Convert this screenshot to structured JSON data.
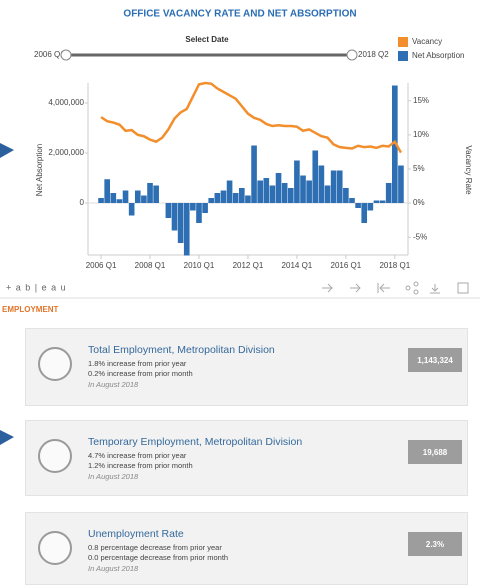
{
  "chart_data": {
    "type": "combo",
    "title": "OFFICE VACANCY RATE AND NET ABSORPTION",
    "filter_label": "Select Date",
    "range_start": "2006 Q1",
    "range_end": "2018 Q2",
    "ylabel": "Net Absorption",
    "y2label": "Vacancy Rate",
    "categories": [
      "2006 Q1",
      null,
      null,
      null,
      null,
      null,
      null,
      null,
      "2008 Q1",
      null,
      null,
      null,
      null,
      null,
      null,
      null,
      "2010 Q1",
      null,
      null,
      null,
      null,
      null,
      null,
      null,
      "2012 Q1",
      null,
      null,
      null,
      null,
      null,
      null,
      null,
      "2014 Q1",
      null,
      null,
      null,
      null,
      null,
      null,
      null,
      "2016 Q1",
      null,
      null,
      null,
      null,
      null,
      null,
      null,
      "2018 Q1",
      null
    ],
    "series": [
      {
        "name": "Vacancy",
        "type": "line",
        "axis": "y2",
        "color": "#f28e2b",
        "values": [
          12.6,
          12.0,
          11.8,
          11.5,
          10.6,
          10.7,
          10.0,
          9.8,
          9.3,
          9.0,
          9.6,
          10.8,
          12.4,
          13.3,
          13.8,
          15.6,
          17.4,
          17.6,
          17.5,
          16.8,
          16.3,
          15.8,
          15.3,
          14.2,
          13.1,
          12.5,
          12.2,
          11.6,
          11.3,
          11.4,
          11.3,
          11.3,
          11.2,
          10.6,
          10.8,
          10.3,
          9.8,
          9.6,
          8.6,
          8.2,
          8.1,
          8.0,
          8.4,
          8.2,
          8.3,
          8.1,
          8.4,
          8.3,
          9.0,
          7.4
        ]
      },
      {
        "name": "Net Absorption",
        "type": "bar",
        "color": "#2e6fb3",
        "values": [
          200000,
          950000,
          400000,
          150000,
          500000,
          -500000,
          500000,
          300000,
          800000,
          700000,
          0,
          -600000,
          -1100000,
          -1600000,
          -2100000,
          -300000,
          -800000,
          -400000,
          200000,
          400000,
          500000,
          900000,
          400000,
          600000,
          300000,
          2300000,
          900000,
          1000000,
          700000,
          1200000,
          800000,
          600000,
          1700000,
          1100000,
          900000,
          2100000,
          1500000,
          700000,
          1300000,
          1300000,
          600000,
          200000,
          -200000,
          -800000,
          -300000,
          100000,
          100000,
          800000,
          4700000,
          1500000
        ]
      }
    ],
    "ylim": [
      -2080000,
      4800000
    ],
    "yticks": [
      {
        "value": 4000000,
        "label": "4,000,000"
      },
      {
        "value": 2000000,
        "label": "2,000,000"
      },
      0
    ],
    "y2lim": [
      -7.6,
      17.6
    ],
    "y2ticks": [
      {
        "value": 15,
        "label": "15%"
      },
      {
        "value": 10,
        "label": "10%"
      },
      {
        "value": 5,
        "label": "5%"
      },
      {
        "value": 0,
        "label": "0%"
      },
      {
        "value": -5,
        "label": "-5%"
      }
    ],
    "grid": false,
    "legend": "top-right"
  },
  "toolbar": {
    "logo": "+ a b | e a u"
  },
  "section": "EMPLOYMENT",
  "cards": [
    {
      "title": "Total Employment, Metropolitan Division",
      "line1": "1.8% increase from prior year",
      "line2": "0.2% increase from prior month",
      "date": "In August 2018",
      "value": "1,143,324"
    },
    {
      "title": "Temporary Employment, Metropolitan Division",
      "line1": "4.7% increase from prior year",
      "line2": "1.2% increase from prior month",
      "date": "In August 2018",
      "value": "19,688"
    },
    {
      "title": "Unemployment Rate",
      "line1": "0.8 percentage decrease from prior year",
      "line2": "0.0 percentage decrease from prior month",
      "date": "In August 2018",
      "value": "2.3%"
    }
  ]
}
